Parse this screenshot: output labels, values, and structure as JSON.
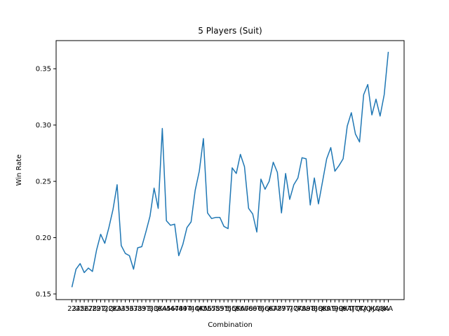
{
  "chart_data": {
    "type": "line",
    "title": "5 Players (Suit)",
    "xlabel": "Combination",
    "ylabel": "Win Rate",
    "ylim": [
      0.145,
      0.375
    ],
    "yticks": [
      0.15,
      0.2,
      0.25,
      0.3,
      0.35
    ],
    "ytick_labels": [
      "0.15",
      "0.20",
      "0.25",
      "0.30",
      "0.35"
    ],
    "grid": false,
    "series": [
      {
        "color": "#1f77b4",
        "categories": [
          "23",
          "24",
          "25",
          "26",
          "27",
          "28",
          "29",
          "2T",
          "2J",
          "2Q",
          "2K",
          "2A",
          "34",
          "35",
          "36",
          "37",
          "38",
          "39",
          "3T",
          "3J",
          "3Q",
          "3K",
          "3A",
          "45",
          "46",
          "47",
          "48",
          "49",
          "4T",
          "4J",
          "4Q",
          "4K",
          "4A",
          "56",
          "57",
          "58",
          "59",
          "5T",
          "5J",
          "5Q",
          "5K",
          "5A",
          "67",
          "68",
          "69",
          "6T",
          "6J",
          "6Q",
          "6K",
          "6A",
          "78",
          "79",
          "7T",
          "7J",
          "7Q",
          "7K",
          "7A",
          "89",
          "8T",
          "8J",
          "8Q",
          "8K",
          "8A",
          "9T",
          "9J",
          "9Q",
          "9K",
          "9A",
          "TJ",
          "TQ",
          "TK",
          "TA",
          "JQ",
          "JK",
          "JA",
          "QK",
          "QA",
          "KA"
        ],
        "values": [
          0.156,
          0.172,
          0.177,
          0.169,
          0.173,
          0.17,
          0.189,
          0.203,
          0.195,
          0.209,
          0.225,
          0.247,
          0.193,
          0.186,
          0.184,
          0.172,
          0.191,
          0.192,
          0.205,
          0.219,
          0.244,
          0.226,
          0.297,
          0.215,
          0.211,
          0.212,
          0.184,
          0.194,
          0.209,
          0.214,
          0.242,
          0.259,
          0.288,
          0.222,
          0.217,
          0.218,
          0.218,
          0.21,
          0.208,
          0.262,
          0.257,
          0.274,
          0.263,
          0.226,
          0.221,
          0.205,
          0.252,
          0.243,
          0.25,
          0.267,
          0.258,
          0.222,
          0.257,
          0.234,
          0.247,
          0.253,
          0.271,
          0.27,
          0.229,
          0.253,
          0.23,
          0.25,
          0.27,
          0.28,
          0.259,
          0.264,
          0.27,
          0.299,
          0.311,
          0.292,
          0.285,
          0.327,
          0.336,
          0.309,
          0.323,
          0.308,
          0.327,
          0.365
        ]
      }
    ]
  }
}
